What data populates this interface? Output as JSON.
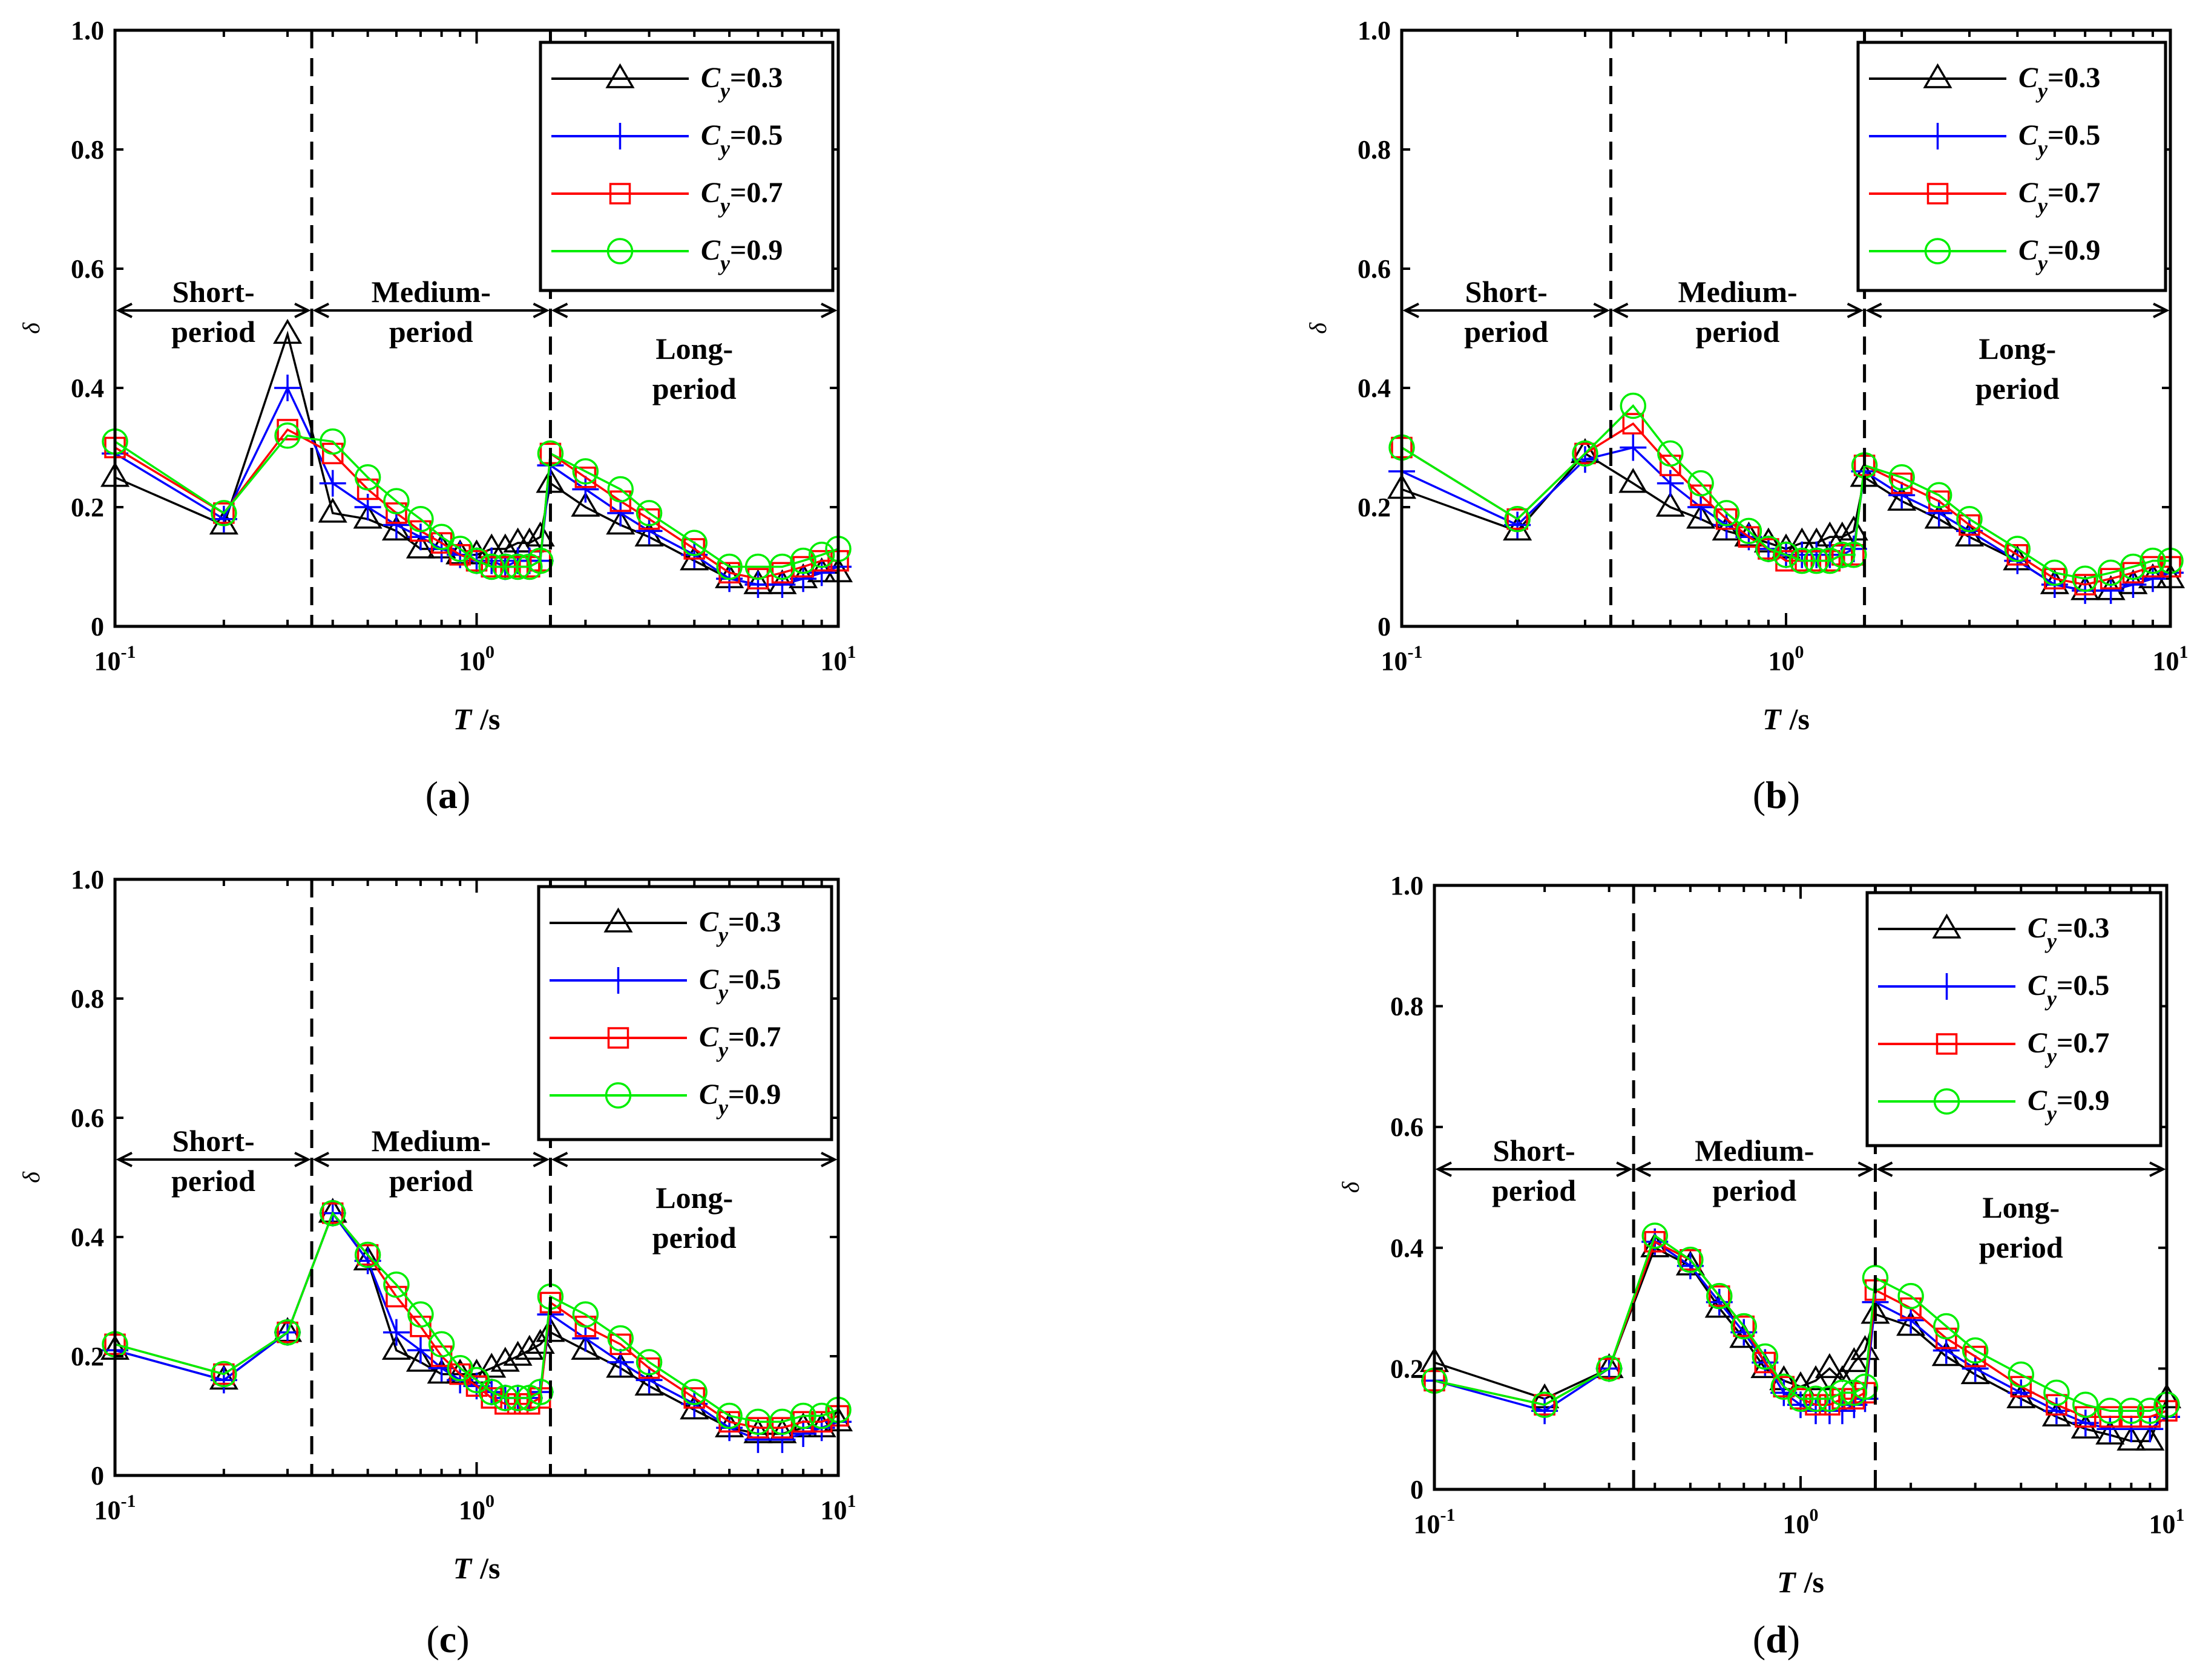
{
  "figure": {
    "axes": {
      "x_title": "T",
      "x_unit": "/s",
      "y_title": "δ",
      "x_ticks": [
        {
          "base": "10",
          "exp": "-1",
          "value": 0.1
        },
        {
          "base": "10",
          "exp": "0",
          "value": 1
        },
        {
          "base": "10",
          "exp": "1",
          "value": 10
        }
      ],
      "y_ticks": [
        "0",
        "0.2",
        "0.4",
        "0.6",
        "0.8",
        "1.0"
      ],
      "y_tick_values": [
        0,
        0.2,
        0.4,
        0.6,
        0.8,
        1.0
      ]
    },
    "regions": {
      "short": [
        "Short-",
        "period"
      ],
      "medium": [
        "Medium-",
        "period"
      ],
      "long": [
        "Long-",
        "period"
      ]
    },
    "legend": [
      {
        "prefix": "C",
        "sub": "y",
        "suffix": "=0.3",
        "color": "#000000",
        "marker": "triangle"
      },
      {
        "prefix": "C",
        "sub": "y",
        "suffix": "=0.5",
        "color": "#0000ff",
        "marker": "plus"
      },
      {
        "prefix": "C",
        "sub": "y",
        "suffix": "=0.7",
        "color": "#ff0000",
        "marker": "square"
      },
      {
        "prefix": "C",
        "sub": "y",
        "suffix": "=0.9",
        "color": "#00ee00",
        "marker": "circle"
      }
    ],
    "panel_labels": [
      {
        "open": "(",
        "letter": "a",
        "close": ")"
      },
      {
        "open": "(",
        "letter": "b",
        "close": ")"
      },
      {
        "open": "(",
        "letter": "c",
        "close": ")"
      },
      {
        "open": "(",
        "letter": "d",
        "close": ")"
      }
    ]
  },
  "chart_data": [
    {
      "type": "line",
      "panel": "a",
      "xscale": "log",
      "xlim": [
        0.1,
        10
      ],
      "ylim": [
        0,
        1.0
      ],
      "xlabel": "T /s",
      "ylabel": "δ",
      "dividers": [
        0.35,
        1.6
      ],
      "series": [
        {
          "name": "Cy=0.3",
          "x": [
            0.1,
            0.2,
            0.3,
            0.4,
            0.5,
            0.6,
            0.7,
            0.8,
            0.9,
            1.0,
            1.1,
            1.2,
            1.3,
            1.4,
            1.5,
            1.6,
            2.0,
            2.5,
            3.0,
            4.0,
            5.0,
            6.0,
            7.0,
            8.0,
            9.0,
            10.0
          ],
          "y": [
            0.25,
            0.17,
            0.49,
            0.19,
            0.18,
            0.16,
            0.13,
            0.13,
            0.12,
            0.12,
            0.13,
            0.13,
            0.14,
            0.14,
            0.15,
            0.24,
            0.2,
            0.17,
            0.15,
            0.11,
            0.08,
            0.07,
            0.07,
            0.08,
            0.09,
            0.09
          ]
        },
        {
          "name": "Cy=0.5",
          "x": [
            0.1,
            0.2,
            0.3,
            0.4,
            0.5,
            0.6,
            0.7,
            0.8,
            0.9,
            1.0,
            1.1,
            1.2,
            1.3,
            1.4,
            1.5,
            1.6,
            2.0,
            2.5,
            3.0,
            4.0,
            5.0,
            6.0,
            7.0,
            8.0,
            9.0,
            10.0
          ],
          "y": [
            0.29,
            0.18,
            0.4,
            0.24,
            0.2,
            0.17,
            0.15,
            0.13,
            0.12,
            0.11,
            0.11,
            0.1,
            0.11,
            0.11,
            0.11,
            0.27,
            0.23,
            0.19,
            0.16,
            0.12,
            0.08,
            0.07,
            0.07,
            0.08,
            0.09,
            0.1
          ]
        },
        {
          "name": "Cy=0.7",
          "x": [
            0.1,
            0.2,
            0.3,
            0.4,
            0.5,
            0.6,
            0.7,
            0.8,
            0.9,
            1.0,
            1.1,
            1.2,
            1.3,
            1.4,
            1.5,
            1.6,
            2.0,
            2.5,
            3.0,
            4.0,
            5.0,
            6.0,
            7.0,
            8.0,
            9.0,
            10.0
          ],
          "y": [
            0.3,
            0.19,
            0.33,
            0.29,
            0.23,
            0.19,
            0.16,
            0.14,
            0.12,
            0.11,
            0.1,
            0.1,
            0.1,
            0.1,
            0.11,
            0.29,
            0.25,
            0.21,
            0.18,
            0.13,
            0.09,
            0.08,
            0.09,
            0.1,
            0.11,
            0.11
          ]
        },
        {
          "name": "Cy=0.9",
          "x": [
            0.1,
            0.2,
            0.3,
            0.4,
            0.5,
            0.6,
            0.7,
            0.8,
            0.9,
            1.0,
            1.1,
            1.2,
            1.3,
            1.4,
            1.5,
            1.6,
            2.0,
            2.5,
            3.0,
            4.0,
            5.0,
            6.0,
            7.0,
            8.0,
            9.0,
            10.0
          ],
          "y": [
            0.31,
            0.19,
            0.32,
            0.31,
            0.25,
            0.21,
            0.18,
            0.15,
            0.13,
            0.11,
            0.1,
            0.1,
            0.1,
            0.1,
            0.11,
            0.29,
            0.26,
            0.23,
            0.19,
            0.14,
            0.1,
            0.1,
            0.1,
            0.11,
            0.12,
            0.13
          ]
        }
      ]
    },
    {
      "type": "line",
      "panel": "b",
      "xscale": "log",
      "xlim": [
        0.1,
        10
      ],
      "ylim": [
        0,
        1.0
      ],
      "xlabel": "T /s",
      "ylabel": "δ",
      "dividers": [
        0.35,
        1.6
      ],
      "series": [
        {
          "name": "Cy=0.3",
          "x": [
            0.1,
            0.2,
            0.3,
            0.4,
            0.5,
            0.6,
            0.7,
            0.8,
            0.9,
            1.0,
            1.1,
            1.2,
            1.3,
            1.4,
            1.5,
            1.6,
            2.0,
            2.5,
            3.0,
            4.0,
            5.0,
            6.0,
            7.0,
            8.0,
            9.0,
            10.0
          ],
          "y": [
            0.23,
            0.16,
            0.29,
            0.24,
            0.2,
            0.18,
            0.16,
            0.15,
            0.14,
            0.13,
            0.14,
            0.14,
            0.15,
            0.15,
            0.16,
            0.25,
            0.21,
            0.18,
            0.15,
            0.11,
            0.07,
            0.06,
            0.06,
            0.07,
            0.08,
            0.08
          ]
        },
        {
          "name": "Cy=0.5",
          "x": [
            0.1,
            0.2,
            0.3,
            0.4,
            0.5,
            0.6,
            0.7,
            0.8,
            0.9,
            1.0,
            1.1,
            1.2,
            1.3,
            1.4,
            1.5,
            1.6,
            2.0,
            2.5,
            3.0,
            4.0,
            5.0,
            6.0,
            7.0,
            8.0,
            9.0,
            10.0
          ],
          "y": [
            0.26,
            0.17,
            0.28,
            0.3,
            0.24,
            0.2,
            0.17,
            0.15,
            0.13,
            0.12,
            0.12,
            0.12,
            0.12,
            0.12,
            0.13,
            0.26,
            0.22,
            0.19,
            0.16,
            0.11,
            0.07,
            0.06,
            0.06,
            0.07,
            0.08,
            0.09
          ]
        },
        {
          "name": "Cy=0.7",
          "x": [
            0.1,
            0.2,
            0.3,
            0.4,
            0.5,
            0.6,
            0.7,
            0.8,
            0.9,
            1.0,
            1.1,
            1.2,
            1.3,
            1.4,
            1.5,
            1.6,
            2.0,
            2.5,
            3.0,
            4.0,
            5.0,
            6.0,
            7.0,
            8.0,
            9.0,
            10.0
          ],
          "y": [
            0.3,
            0.18,
            0.29,
            0.34,
            0.27,
            0.22,
            0.18,
            0.15,
            0.13,
            0.11,
            0.11,
            0.11,
            0.11,
            0.12,
            0.12,
            0.27,
            0.24,
            0.21,
            0.17,
            0.12,
            0.08,
            0.07,
            0.08,
            0.09,
            0.1,
            0.1
          ]
        },
        {
          "name": "Cy=0.9",
          "x": [
            0.1,
            0.2,
            0.3,
            0.4,
            0.5,
            0.6,
            0.7,
            0.8,
            0.9,
            1.0,
            1.1,
            1.2,
            1.3,
            1.4,
            1.5,
            1.6,
            2.0,
            2.5,
            3.0,
            4.0,
            5.0,
            6.0,
            7.0,
            8.0,
            9.0,
            10.0
          ],
          "y": [
            0.3,
            0.18,
            0.29,
            0.37,
            0.29,
            0.24,
            0.19,
            0.16,
            0.13,
            0.12,
            0.11,
            0.11,
            0.11,
            0.12,
            0.12,
            0.27,
            0.25,
            0.22,
            0.18,
            0.13,
            0.09,
            0.08,
            0.09,
            0.1,
            0.11,
            0.11
          ]
        }
      ]
    },
    {
      "type": "line",
      "panel": "c",
      "xscale": "log",
      "xlim": [
        0.1,
        10
      ],
      "ylim": [
        0,
        1.0
      ],
      "xlabel": "T /s",
      "ylabel": "δ",
      "dividers": [
        0.35,
        1.6
      ],
      "series": [
        {
          "name": "Cy=0.3",
          "x": [
            0.1,
            0.2,
            0.3,
            0.4,
            0.5,
            0.6,
            0.7,
            0.8,
            0.9,
            1.0,
            1.1,
            1.2,
            1.3,
            1.4,
            1.5,
            1.6,
            2.0,
            2.5,
            3.0,
            4.0,
            5.0,
            6.0,
            7.0,
            8.0,
            9.0,
            10.0
          ],
          "y": [
            0.21,
            0.16,
            0.24,
            0.44,
            0.36,
            0.21,
            0.19,
            0.17,
            0.17,
            0.17,
            0.18,
            0.19,
            0.2,
            0.21,
            0.22,
            0.24,
            0.21,
            0.18,
            0.15,
            0.11,
            0.08,
            0.07,
            0.07,
            0.08,
            0.08,
            0.09
          ]
        },
        {
          "name": "Cy=0.5",
          "x": [
            0.1,
            0.2,
            0.3,
            0.4,
            0.5,
            0.6,
            0.7,
            0.8,
            0.9,
            1.0,
            1.1,
            1.2,
            1.3,
            1.4,
            1.5,
            1.6,
            2.0,
            2.5,
            3.0,
            4.0,
            5.0,
            6.0,
            7.0,
            8.0,
            9.0,
            10.0
          ],
          "y": [
            0.21,
            0.16,
            0.24,
            0.44,
            0.36,
            0.24,
            0.21,
            0.18,
            0.16,
            0.15,
            0.14,
            0.13,
            0.13,
            0.13,
            0.14,
            0.27,
            0.23,
            0.19,
            0.16,
            0.12,
            0.08,
            0.06,
            0.06,
            0.07,
            0.08,
            0.09
          ]
        },
        {
          "name": "Cy=0.7",
          "x": [
            0.1,
            0.2,
            0.3,
            0.4,
            0.5,
            0.6,
            0.7,
            0.8,
            0.9,
            1.0,
            1.1,
            1.2,
            1.3,
            1.4,
            1.5,
            1.6,
            2.0,
            2.5,
            3.0,
            4.0,
            5.0,
            6.0,
            7.0,
            8.0,
            9.0,
            10.0
          ],
          "y": [
            0.22,
            0.17,
            0.24,
            0.44,
            0.37,
            0.3,
            0.25,
            0.2,
            0.17,
            0.15,
            0.13,
            0.12,
            0.12,
            0.12,
            0.13,
            0.29,
            0.25,
            0.22,
            0.18,
            0.13,
            0.09,
            0.08,
            0.08,
            0.09,
            0.09,
            0.1
          ]
        },
        {
          "name": "Cy=0.9",
          "x": [
            0.1,
            0.2,
            0.3,
            0.4,
            0.5,
            0.6,
            0.7,
            0.8,
            0.9,
            1.0,
            1.1,
            1.2,
            1.3,
            1.4,
            1.5,
            1.6,
            2.0,
            2.5,
            3.0,
            4.0,
            5.0,
            6.0,
            7.0,
            8.0,
            9.0,
            10.0
          ],
          "y": [
            0.22,
            0.17,
            0.24,
            0.44,
            0.37,
            0.32,
            0.27,
            0.22,
            0.18,
            0.16,
            0.14,
            0.13,
            0.13,
            0.13,
            0.14,
            0.3,
            0.27,
            0.23,
            0.19,
            0.14,
            0.1,
            0.09,
            0.09,
            0.1,
            0.1,
            0.11
          ]
        }
      ]
    },
    {
      "type": "line",
      "panel": "d",
      "xscale": "log",
      "xlim": [
        0.1,
        10
      ],
      "ylim": [
        0,
        1.0
      ],
      "xlabel": "T /s",
      "ylabel": "δ",
      "dividers": [
        0.35,
        1.6
      ],
      "series": [
        {
          "name": "Cy=0.3",
          "x": [
            0.1,
            0.2,
            0.3,
            0.4,
            0.5,
            0.6,
            0.7,
            0.8,
            0.9,
            1.0,
            1.1,
            1.2,
            1.3,
            1.4,
            1.5,
            1.6,
            2.0,
            2.5,
            3.0,
            4.0,
            5.0,
            6.0,
            7.0,
            8.0,
            9.0,
            10.0
          ],
          "y": [
            0.21,
            0.15,
            0.2,
            0.4,
            0.37,
            0.3,
            0.25,
            0.2,
            0.18,
            0.17,
            0.18,
            0.2,
            0.18,
            0.21,
            0.23,
            0.29,
            0.27,
            0.22,
            0.19,
            0.15,
            0.12,
            0.1,
            0.09,
            0.08,
            0.08,
            0.15
          ]
        },
        {
          "name": "Cy=0.5",
          "x": [
            0.1,
            0.2,
            0.3,
            0.4,
            0.5,
            0.6,
            0.7,
            0.8,
            0.9,
            1.0,
            1.1,
            1.2,
            1.3,
            1.4,
            1.5,
            1.6,
            2.0,
            2.5,
            3.0,
            4.0,
            5.0,
            6.0,
            7.0,
            8.0,
            9.0,
            10.0
          ],
          "y": [
            0.18,
            0.13,
            0.2,
            0.41,
            0.37,
            0.31,
            0.26,
            0.21,
            0.16,
            0.14,
            0.13,
            0.13,
            0.13,
            0.14,
            0.15,
            0.31,
            0.28,
            0.23,
            0.2,
            0.16,
            0.13,
            0.11,
            0.1,
            0.1,
            0.1,
            0.12
          ]
        },
        {
          "name": "Cy=0.7",
          "x": [
            0.1,
            0.2,
            0.3,
            0.4,
            0.5,
            0.6,
            0.7,
            0.8,
            0.9,
            1.0,
            1.1,
            1.2,
            1.3,
            1.4,
            1.5,
            1.6,
            2.0,
            2.5,
            3.0,
            4.0,
            5.0,
            6.0,
            7.0,
            8.0,
            9.0,
            10.0
          ],
          "y": [
            0.18,
            0.14,
            0.2,
            0.41,
            0.38,
            0.32,
            0.27,
            0.21,
            0.17,
            0.15,
            0.14,
            0.14,
            0.15,
            0.15,
            0.16,
            0.33,
            0.3,
            0.25,
            0.22,
            0.17,
            0.14,
            0.12,
            0.12,
            0.12,
            0.12,
            0.13
          ]
        },
        {
          "name": "Cy=0.9",
          "x": [
            0.1,
            0.2,
            0.3,
            0.4,
            0.5,
            0.6,
            0.7,
            0.8,
            0.9,
            1.0,
            1.1,
            1.2,
            1.3,
            1.4,
            1.5,
            1.6,
            2.0,
            2.5,
            3.0,
            4.0,
            5.0,
            6.0,
            7.0,
            8.0,
            9.0,
            10.0
          ],
          "y": [
            0.18,
            0.14,
            0.2,
            0.42,
            0.38,
            0.32,
            0.27,
            0.22,
            0.17,
            0.15,
            0.15,
            0.15,
            0.16,
            0.16,
            0.17,
            0.35,
            0.32,
            0.27,
            0.23,
            0.19,
            0.16,
            0.14,
            0.13,
            0.13,
            0.13,
            0.14
          ]
        }
      ]
    }
  ]
}
